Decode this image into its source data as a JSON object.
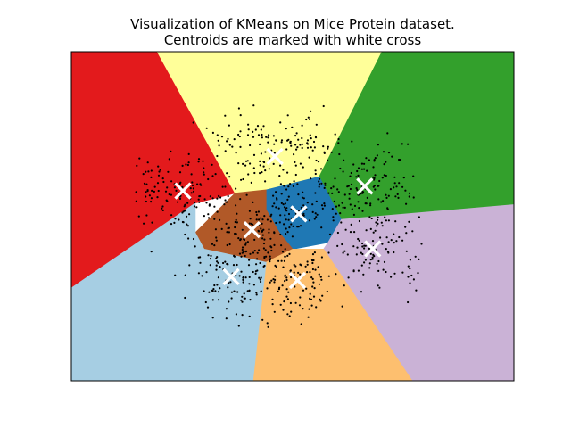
{
  "chart_data": {
    "type": "scatter",
    "title": "Visualization of KMeans on Mice Protein dataset.",
    "subtitle": "Centroids are marked with white cross",
    "xlabel": "",
    "ylabel": "",
    "xticks": [],
    "yticks": [],
    "xlim": [
      0,
      100
    ],
    "ylim": [
      0,
      100
    ],
    "grid": false,
    "legend": "none",
    "centroid_marker": "white cross",
    "point_color": "#000000",
    "centroid_color": "#ffffff",
    "regions": [
      {
        "color": "#e31a1c",
        "polygon": [
          [
            0,
            100
          ],
          [
            19.4,
            100
          ],
          [
            37,
            57
          ],
          [
            28,
            54
          ],
          [
            0,
            28.2
          ]
        ]
      },
      {
        "color": "#ffff99",
        "polygon": [
          [
            19.4,
            100
          ],
          [
            70.2,
            100
          ],
          [
            56,
            62
          ],
          [
            44,
            58
          ],
          [
            37,
            57
          ]
        ]
      },
      {
        "color": "#33a02c",
        "polygon": [
          [
            70.2,
            100
          ],
          [
            100,
            100
          ],
          [
            100,
            53.5
          ],
          [
            61,
            49
          ],
          [
            56,
            62
          ]
        ]
      },
      {
        "color": "#1f78b4",
        "polygon": [
          [
            44,
            58
          ],
          [
            56,
            62
          ],
          [
            61,
            49
          ],
          [
            58,
            42
          ],
          [
            50,
            40
          ],
          [
            47,
            45
          ],
          [
            44,
            52
          ]
        ]
      },
      {
        "color": "#b15928",
        "polygon": [
          [
            37,
            57
          ],
          [
            44,
            58
          ],
          [
            44,
            52
          ],
          [
            47,
            45
          ],
          [
            50,
            40
          ],
          [
            44,
            36
          ],
          [
            30,
            40
          ],
          [
            28,
            45
          ]
        ]
      },
      {
        "color": "#cab2d6",
        "polygon": [
          [
            61,
            49
          ],
          [
            100,
            53.5
          ],
          [
            100,
            0
          ],
          [
            77,
            0
          ],
          [
            57,
            40
          ],
          [
            58,
            42
          ]
        ]
      },
      {
        "color": "#fdbf6f",
        "polygon": [
          [
            44,
            36
          ],
          [
            50,
            40
          ],
          [
            57,
            40
          ],
          [
            77,
            0
          ],
          [
            41,
            0
          ]
        ]
      },
      {
        "color": "#a6cee3",
        "polygon": [
          [
            0,
            28.2
          ],
          [
            28,
            54
          ],
          [
            28,
            45
          ],
          [
            30,
            40
          ],
          [
            44,
            36
          ],
          [
            41,
            0
          ],
          [
            0,
            0
          ]
        ]
      }
    ],
    "clusters": [
      {
        "cx": 25,
        "cy": 57,
        "sx": 6.5,
        "sy": 6.5,
        "n": 145
      },
      {
        "cx": 46,
        "cy": 71,
        "sx": 7.5,
        "sy": 5.5,
        "n": 150
      },
      {
        "cx": 66,
        "cy": 59,
        "sx": 6.0,
        "sy": 6.0,
        "n": 130
      },
      {
        "cx": 51,
        "cy": 52,
        "sx": 4.0,
        "sy": 3.5,
        "n": 70
      },
      {
        "cx": 41,
        "cy": 46,
        "sx": 4.5,
        "sy": 4.0,
        "n": 80
      },
      {
        "cx": 68,
        "cy": 40,
        "sx": 6.5,
        "sy": 6.5,
        "n": 115
      },
      {
        "cx": 51,
        "cy": 31,
        "sx": 5.0,
        "sy": 6.5,
        "n": 120
      },
      {
        "cx": 37,
        "cy": 32,
        "sx": 5.0,
        "sy": 6.0,
        "n": 120
      }
    ],
    "centroids": [
      {
        "x": 25.2,
        "y": 57.7
      },
      {
        "x": 46.0,
        "y": 68.2
      },
      {
        "x": 66.3,
        "y": 59.1
      },
      {
        "x": 51.4,
        "y": 50.7
      },
      {
        "x": 40.8,
        "y": 45.9
      },
      {
        "x": 68.1,
        "y": 40.1
      },
      {
        "x": 51.1,
        "y": 30.5
      },
      {
        "x": 36.1,
        "y": 31.6
      }
    ]
  }
}
